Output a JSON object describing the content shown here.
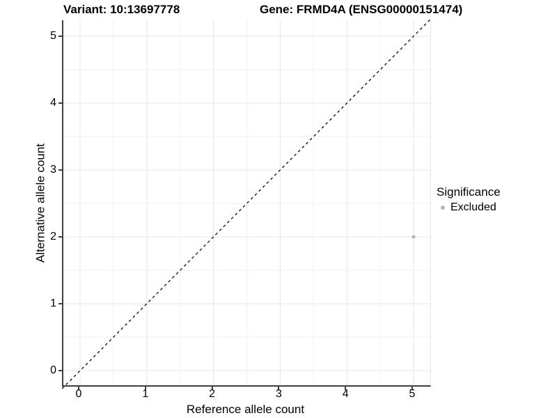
{
  "title": {
    "variant": "Variant: 10:13697778",
    "gene": "Gene: FRMD4A (ENSG00000151474)"
  },
  "chart_data": {
    "type": "scatter",
    "title": "Variant: 10:13697778   Gene: FRMD4A (ENSG00000151474)",
    "xlabel": "Reference allele count",
    "ylabel": "Alternative allele count",
    "xlim": [
      -0.25,
      5.25
    ],
    "ylim": [
      -0.25,
      5.25
    ],
    "x_ticks": [
      0,
      1,
      2,
      3,
      4,
      5
    ],
    "y_ticks": [
      0,
      1,
      2,
      3,
      4,
      5
    ],
    "grid": "major and minor (0.5 steps), light gray, on white background",
    "legend": {
      "title": "Significance",
      "position": "right",
      "entries": [
        {
          "label": "Excluded",
          "color": "#b5b5b5"
        }
      ]
    },
    "series": [
      {
        "name": "Excluded",
        "color": "#b5b5b5",
        "points": [
          {
            "x": 5,
            "y": 2
          }
        ],
        "point_radius_px": 2.6
      }
    ],
    "reference_line": {
      "type": "identity y=x",
      "style": "dashed",
      "color": "#1a1a1a",
      "from": [
        -0.27,
        -0.27
      ],
      "to": [
        5.27,
        5.27
      ]
    },
    "colors": {
      "axis_line": "#3f3f3f",
      "major_grid": "#e7e7e7",
      "minor_grid": "#f1f1f1",
      "point": "#b5b5b5",
      "text": "#000000"
    }
  }
}
